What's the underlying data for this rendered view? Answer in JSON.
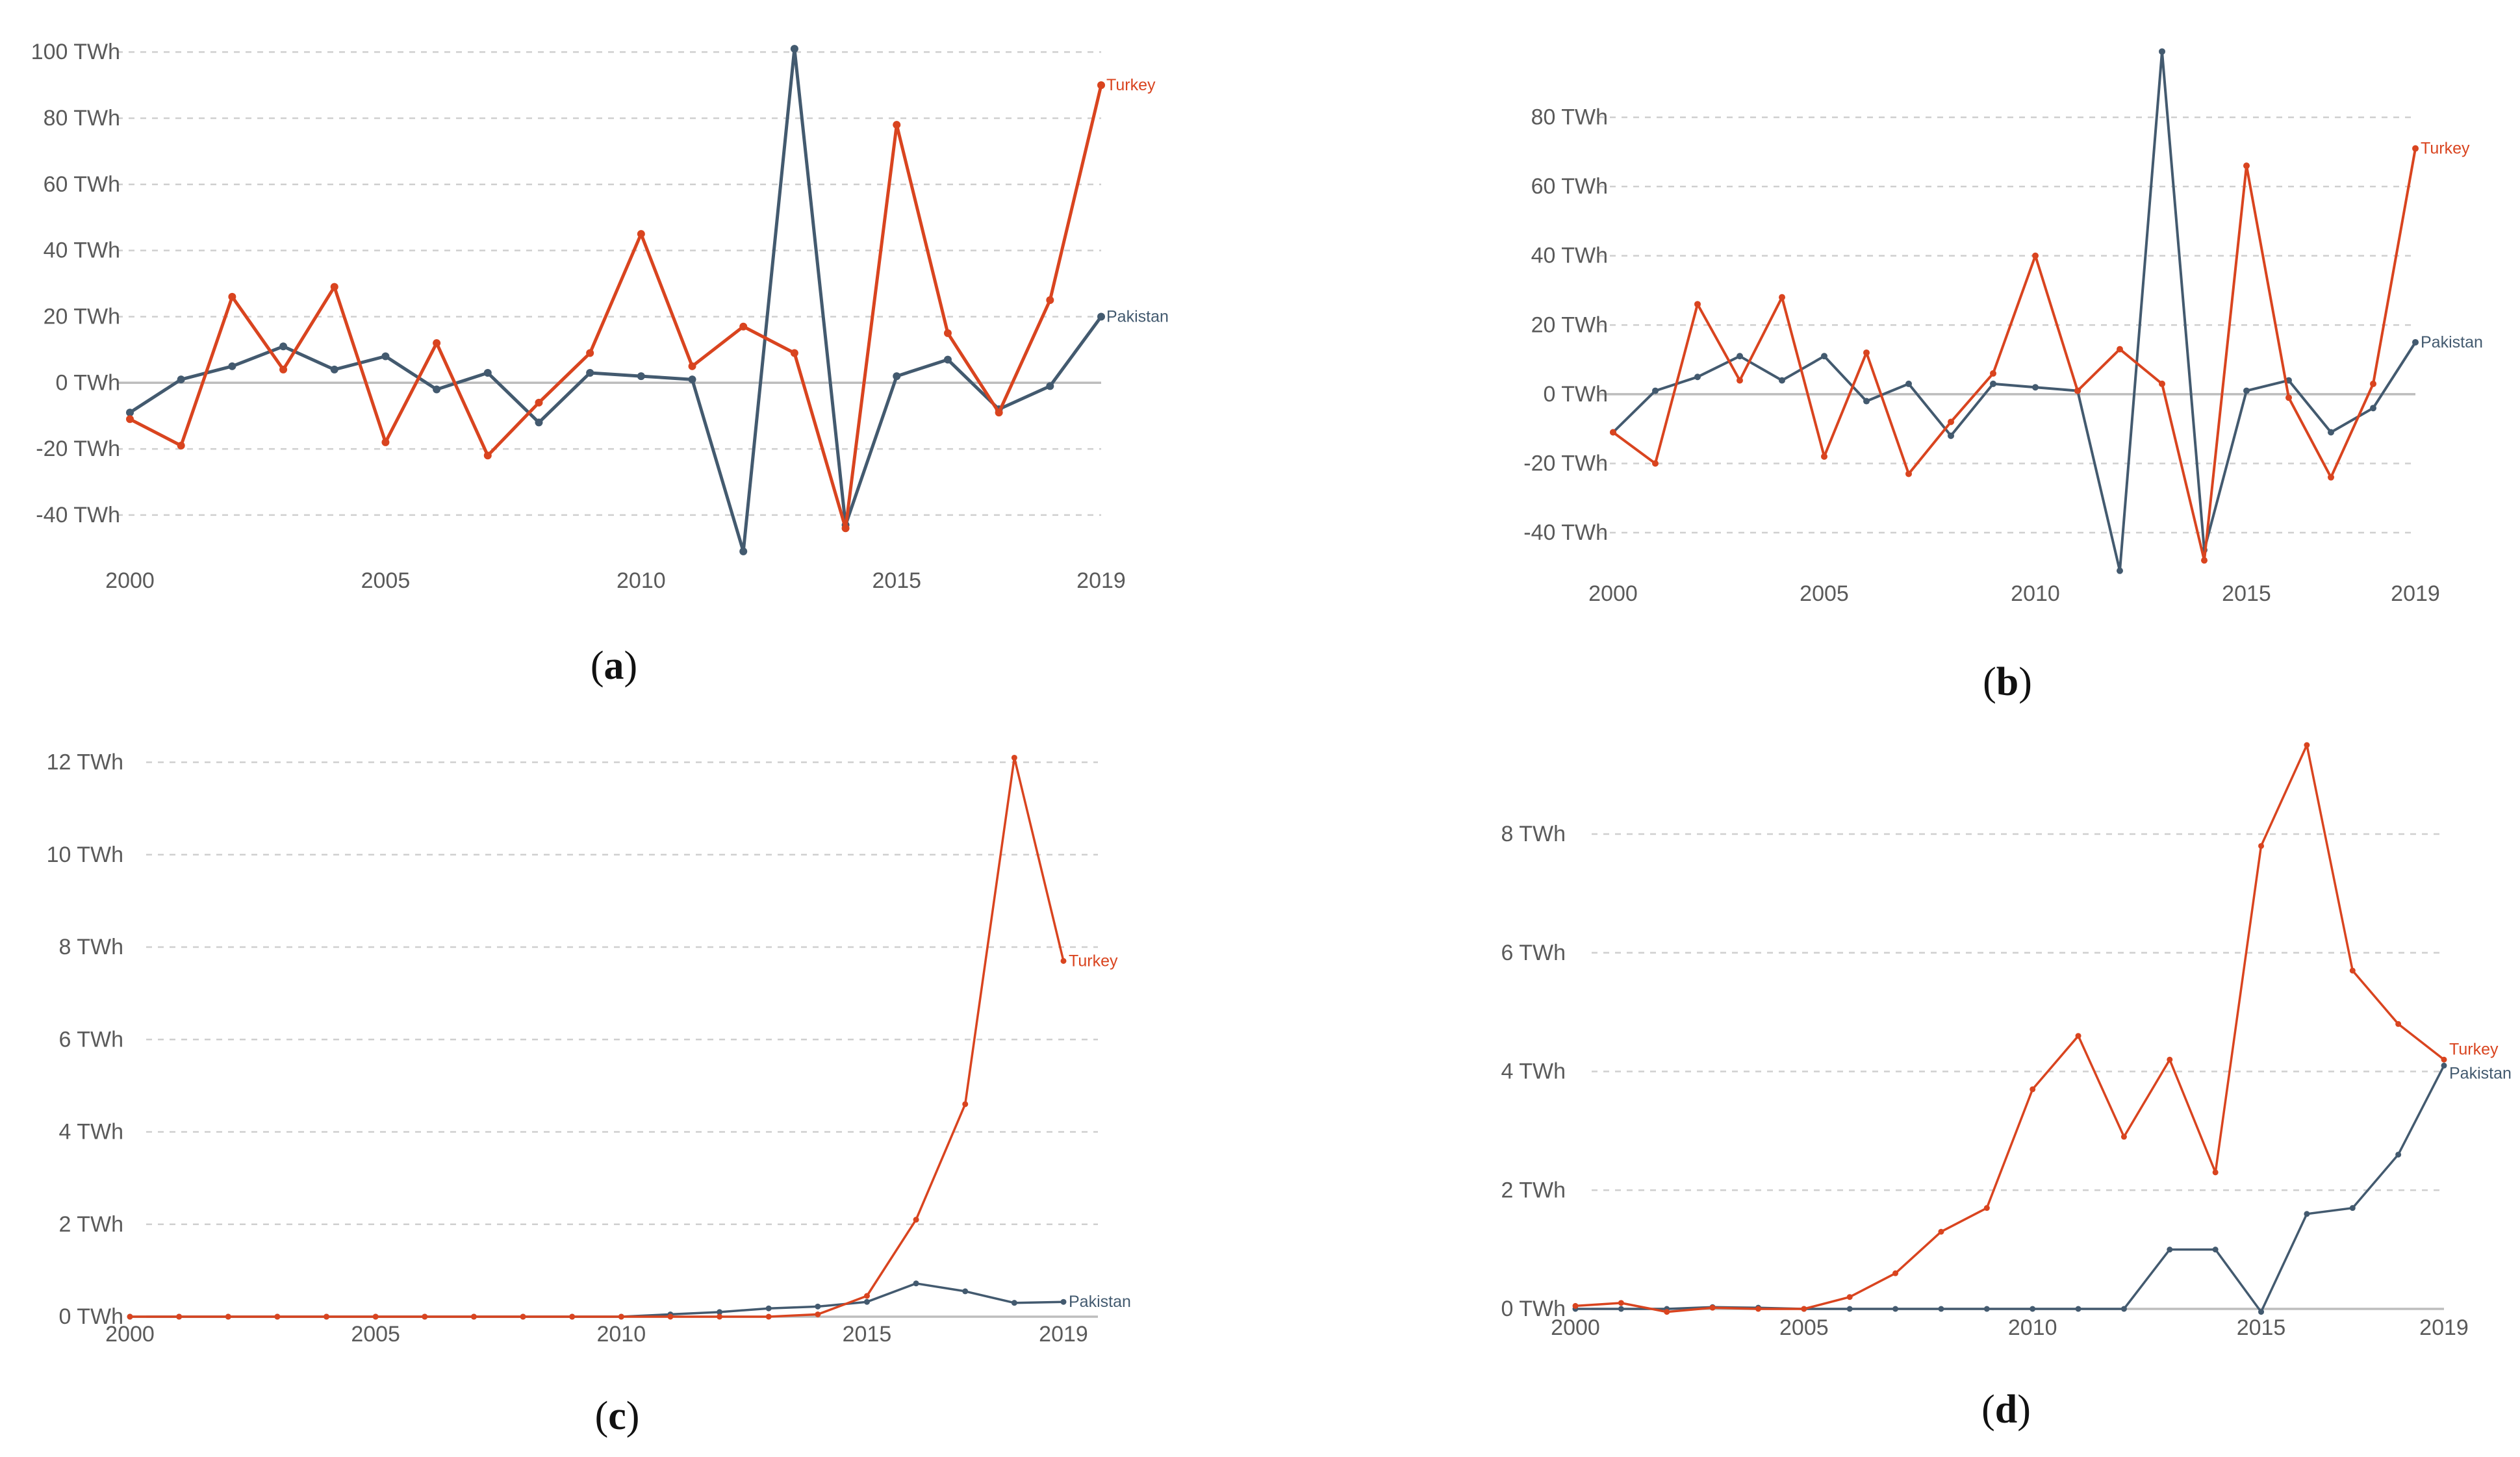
{
  "colors": {
    "turkey": "#d9441f",
    "pakistan": "#435a6f"
  },
  "chart_data": [
    {
      "type": "line",
      "panel": "a",
      "x": [
        2000,
        2001,
        2002,
        2003,
        2004,
        2005,
        2006,
        2007,
        2008,
        2009,
        2010,
        2011,
        2012,
        2013,
        2014,
        2015,
        2016,
        2017,
        2018,
        2019
      ],
      "series": [
        {
          "name": "Turkey",
          "values": [
            -11,
            -19,
            26,
            4,
            29,
            -18,
            12,
            -22,
            -6,
            9,
            45,
            5,
            17,
            9,
            -44,
            78,
            15,
            -9,
            25,
            90
          ]
        },
        {
          "name": "Pakistan",
          "values": [
            -9,
            1,
            5,
            11,
            4,
            8,
            -2,
            3,
            -12,
            3,
            2,
            1,
            -51,
            101,
            -43,
            2,
            7,
            -8,
            -1,
            20
          ]
        }
      ],
      "yticks": [
        -40,
        -20,
        0,
        20,
        40,
        60,
        80,
        100
      ],
      "ytick_labels": [
        "-40 TWh",
        "-20 TWh",
        "0 TWh",
        "20 TWh",
        "40 TWh",
        "60 TWh",
        "80 TWh",
        "100 TWh"
      ],
      "xticks": [
        2000,
        2005,
        2010,
        2015,
        2019
      ],
      "xtick_labels": [
        "2000",
        "2005",
        "2010",
        "2015",
        "2019"
      ],
      "ylim": [
        -52,
        102
      ],
      "xlim": [
        2000,
        2019
      ],
      "unit": "TWh"
    },
    {
      "type": "line",
      "panel": "b",
      "x": [
        2000,
        2001,
        2002,
        2003,
        2004,
        2005,
        2006,
        2007,
        2008,
        2009,
        2010,
        2011,
        2012,
        2013,
        2014,
        2015,
        2016,
        2017,
        2018,
        2019
      ],
      "series": [
        {
          "name": "Turkey",
          "values": [
            -11,
            -20,
            26,
            4,
            28,
            -18,
            12,
            -23,
            -8,
            6,
            40,
            1,
            13,
            3,
            -48,
            66,
            -1,
            -24,
            3,
            71
          ]
        },
        {
          "name": "Pakistan",
          "values": [
            -11,
            1,
            5,
            11,
            4,
            11,
            -2,
            3,
            -12,
            3,
            2,
            1,
            -51,
            99,
            -45,
            1,
            4,
            -11,
            -4,
            15
          ]
        }
      ],
      "yticks": [
        -40,
        -20,
        0,
        20,
        40,
        60,
        80
      ],
      "ytick_labels": [
        "-40 TWh",
        "-20 TWh",
        "0 TWh",
        "20 TWh",
        "40 TWh",
        "60 TWh",
        "80 TWh"
      ],
      "xticks": [
        2000,
        2005,
        2010,
        2015,
        2019
      ],
      "xtick_labels": [
        "2000",
        "2005",
        "2010",
        "2015",
        "2019"
      ],
      "ylim": [
        -52,
        100
      ],
      "xlim": [
        2000,
        2019
      ],
      "unit": "TWh"
    },
    {
      "type": "line",
      "panel": "c",
      "x": [
        2000,
        2001,
        2002,
        2003,
        2004,
        2005,
        2006,
        2007,
        2008,
        2009,
        2010,
        2011,
        2012,
        2013,
        2014,
        2015,
        2016,
        2017,
        2018,
        2019
      ],
      "series": [
        {
          "name": "Turkey",
          "values": [
            0,
            0,
            0,
            0,
            0,
            0,
            0,
            0,
            0,
            0,
            0,
            0,
            0,
            0,
            0.05,
            0.45,
            2.1,
            4.6,
            12.1,
            7.7
          ]
        },
        {
          "name": "Pakistan",
          "values": [
            0,
            0,
            0,
            0,
            0,
            0,
            0,
            0,
            0,
            0,
            0,
            0.05,
            0.1,
            0.18,
            0.22,
            0.32,
            0.72,
            0.55,
            0.3,
            0.32
          ]
        }
      ],
      "yticks": [
        0,
        2,
        4,
        6,
        8,
        10,
        12
      ],
      "ytick_labels": [
        "0 TWh",
        "2 TWh",
        "4 TWh",
        "6 TWh",
        "8 TWh",
        "10 TWh",
        "12 TWh"
      ],
      "xticks": [
        2000,
        2005,
        2010,
        2015,
        2019
      ],
      "xtick_labels": [
        "2000",
        "2005",
        "2010",
        "2015",
        "2019"
      ],
      "ylim": [
        0,
        12.5
      ],
      "xlim": [
        2000,
        2019
      ],
      "unit": "TWh"
    },
    {
      "type": "line",
      "panel": "d",
      "x": [
        2000,
        2001,
        2002,
        2003,
        2004,
        2005,
        2006,
        2007,
        2008,
        2009,
        2010,
        2011,
        2012,
        2013,
        2014,
        2015,
        2016,
        2017,
        2018,
        2019
      ],
      "series": [
        {
          "name": "Turkey",
          "values": [
            0.05,
            0.1,
            -0.05,
            0.02,
            0,
            0,
            0.2,
            0.6,
            1.3,
            1.7,
            3.7,
            4.6,
            2.9,
            4.2,
            2.3,
            7.8,
            9.5,
            5.7,
            4.8,
            4.2
          ]
        },
        {
          "name": "Pakistan",
          "values": [
            0,
            0,
            0,
            0.03,
            0.02,
            0,
            0,
            0,
            0,
            0,
            0,
            0,
            0,
            1,
            1,
            -0.05,
            1.6,
            1.7,
            2.6,
            4.1
          ]
        }
      ],
      "yticks": [
        0,
        2,
        4,
        6,
        8
      ],
      "ytick_labels": [
        "0 TWh",
        "2 TWh",
        "4 TWh",
        "6 TWh",
        "8 TWh"
      ],
      "xticks": [
        2000,
        2005,
        2010,
        2015,
        2019
      ],
      "xtick_labels": [
        "2000",
        "2005",
        "2010",
        "2015",
        "2019"
      ],
      "ylim": [
        0,
        9.5
      ],
      "xlim": [
        2000,
        2019
      ],
      "unit": "TWh"
    }
  ],
  "panel_labels": [
    {
      "open": "(",
      "letter": "a",
      "close": ")"
    },
    {
      "open": "(",
      "letter": "b",
      "close": ")"
    },
    {
      "open": "(",
      "letter": "c",
      "close": ")"
    },
    {
      "open": "(",
      "letter": "d",
      "close": ")"
    }
  ]
}
